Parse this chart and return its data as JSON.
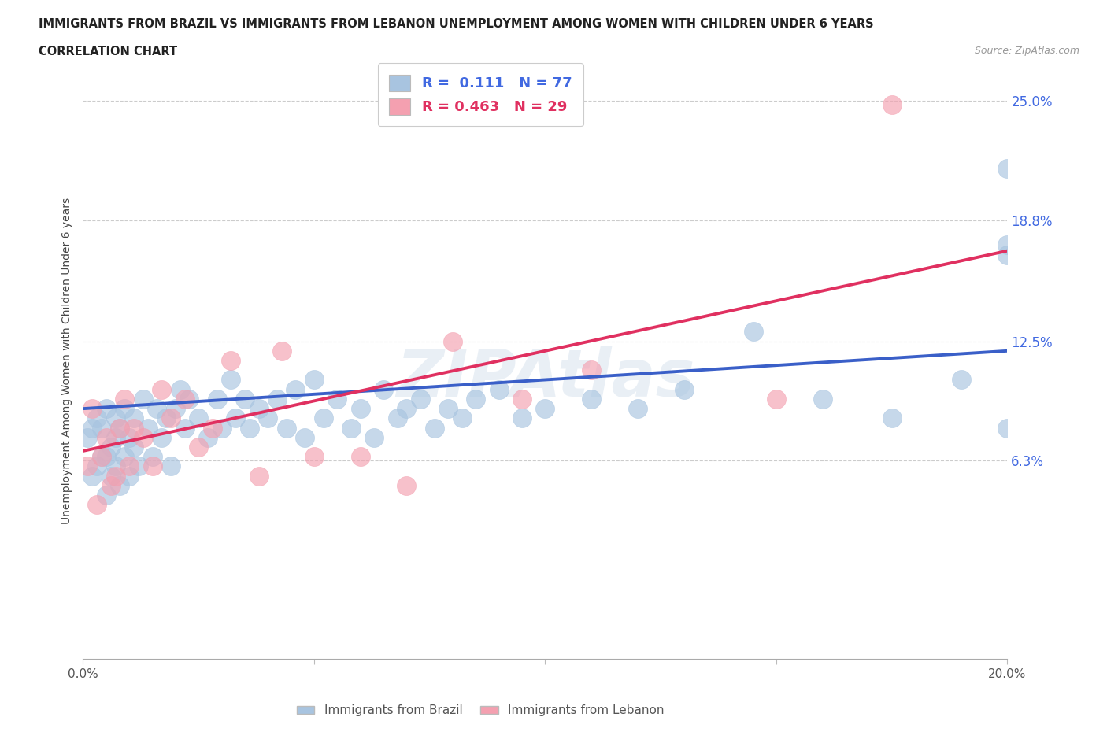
{
  "title_line1": "IMMIGRANTS FROM BRAZIL VS IMMIGRANTS FROM LEBANON UNEMPLOYMENT AMONG WOMEN WITH CHILDREN UNDER 6 YEARS",
  "title_line2": "CORRELATION CHART",
  "source_text": "Source: ZipAtlas.com",
  "ylabel": "Unemployment Among Women with Children Under 6 years",
  "brazil_color": "#a8c4e0",
  "lebanon_color": "#f4a0b0",
  "brazil_line_color": "#3a5fc8",
  "lebanon_line_color": "#e03060",
  "brazil_R": 0.111,
  "brazil_N": 77,
  "lebanon_R": 0.463,
  "lebanon_N": 29,
  "watermark": "ZIPAtlas",
  "watermark_color": "#c8d8e8",
  "ytick_positions": [
    0.063,
    0.125,
    0.188,
    0.25
  ],
  "ytick_labels": [
    "6.3%",
    "12.5%",
    "18.8%",
    "25.0%"
  ],
  "xlim": [
    0.0,
    0.2
  ],
  "ylim": [
    -0.04,
    0.27
  ],
  "brazil_trendline_start_y": 0.09,
  "brazil_trendline_end_y": 0.12,
  "lebanon_trendline_start_y": 0.068,
  "lebanon_trendline_end_y": 0.172,
  "brazil_x": [
    0.001,
    0.002,
    0.002,
    0.003,
    0.003,
    0.004,
    0.004,
    0.005,
    0.005,
    0.005,
    0.006,
    0.006,
    0.007,
    0.007,
    0.007,
    0.008,
    0.008,
    0.009,
    0.009,
    0.01,
    0.01,
    0.011,
    0.011,
    0.012,
    0.013,
    0.014,
    0.015,
    0.016,
    0.017,
    0.018,
    0.019,
    0.02,
    0.021,
    0.022,
    0.023,
    0.025,
    0.027,
    0.029,
    0.03,
    0.032,
    0.033,
    0.035,
    0.036,
    0.038,
    0.04,
    0.042,
    0.044,
    0.046,
    0.048,
    0.05,
    0.052,
    0.055,
    0.058,
    0.06,
    0.063,
    0.065,
    0.068,
    0.07,
    0.073,
    0.076,
    0.079,
    0.082,
    0.085,
    0.09,
    0.095,
    0.1,
    0.11,
    0.12,
    0.13,
    0.145,
    0.16,
    0.175,
    0.19,
    0.2,
    0.2,
    0.2,
    0.2
  ],
  "brazil_y": [
    0.075,
    0.055,
    0.08,
    0.06,
    0.085,
    0.065,
    0.08,
    0.045,
    0.065,
    0.09,
    0.07,
    0.055,
    0.075,
    0.06,
    0.085,
    0.05,
    0.08,
    0.065,
    0.09,
    0.055,
    0.075,
    0.07,
    0.085,
    0.06,
    0.095,
    0.08,
    0.065,
    0.09,
    0.075,
    0.085,
    0.06,
    0.09,
    0.1,
    0.08,
    0.095,
    0.085,
    0.075,
    0.095,
    0.08,
    0.105,
    0.085,
    0.095,
    0.08,
    0.09,
    0.085,
    0.095,
    0.08,
    0.1,
    0.075,
    0.105,
    0.085,
    0.095,
    0.08,
    0.09,
    0.075,
    0.1,
    0.085,
    0.09,
    0.095,
    0.08,
    0.09,
    0.085,
    0.095,
    0.1,
    0.085,
    0.09,
    0.095,
    0.09,
    0.1,
    0.13,
    0.095,
    0.085,
    0.105,
    0.215,
    0.175,
    0.17,
    0.08
  ],
  "lebanon_x": [
    0.001,
    0.002,
    0.003,
    0.004,
    0.005,
    0.006,
    0.007,
    0.008,
    0.009,
    0.01,
    0.011,
    0.013,
    0.015,
    0.017,
    0.019,
    0.022,
    0.025,
    0.028,
    0.032,
    0.038,
    0.043,
    0.05,
    0.06,
    0.07,
    0.08,
    0.095,
    0.11,
    0.15,
    0.175
  ],
  "lebanon_y": [
    0.06,
    0.09,
    0.04,
    0.065,
    0.075,
    0.05,
    0.055,
    0.08,
    0.095,
    0.06,
    0.08,
    0.075,
    0.06,
    0.1,
    0.085,
    0.095,
    0.07,
    0.08,
    0.115,
    0.055,
    0.12,
    0.065,
    0.065,
    0.05,
    0.125,
    0.095,
    0.11,
    0.095,
    0.248
  ]
}
